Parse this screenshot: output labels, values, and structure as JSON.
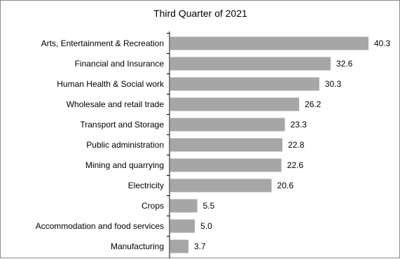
{
  "chart_data": {
    "type": "bar",
    "orientation": "horizontal",
    "title": "Third Quarter of 2021",
    "xlabel": "",
    "ylabel": "",
    "categories": [
      "Arts, Entertainment & Recreation",
      "Financial and Insurance",
      "Human Health & Social work",
      "Wholesale and retail trade",
      "Transport and Storage",
      "Public administration",
      "Mining and quarrying",
      "Electricity",
      "Crops",
      "Accommodation and food services",
      "Manufacturing"
    ],
    "values": [
      40.3,
      32.6,
      30.3,
      26.2,
      23.3,
      22.8,
      22.6,
      20.6,
      5.5,
      5.0,
      3.7
    ],
    "value_labels": [
      "40.3",
      "32.6",
      "30.3",
      "26.2",
      "23.3",
      "22.8",
      "22.6",
      "20.6",
      "5.5",
      "5.0",
      "3.7"
    ],
    "xlim": [
      0,
      40.3
    ],
    "bar_color": "#a6a6a6",
    "grid": false,
    "legend": "none"
  }
}
